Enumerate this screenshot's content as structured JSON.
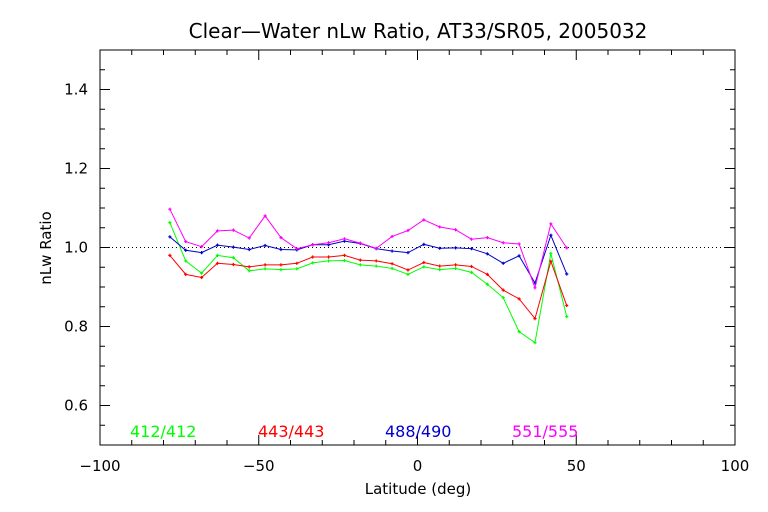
{
  "chart_data": {
    "type": "line",
    "title": "Clear—Water nLw Ratio, AT33/SR05, 2005032",
    "xlabel": "Latitude (deg)",
    "ylabel": "nLw Ratio",
    "xlim": [
      -100,
      100
    ],
    "ylim": [
      0.5,
      1.5
    ],
    "x_ticks": [
      -100,
      -50,
      0,
      50,
      100
    ],
    "x_tick_labels": [
      "−100",
      "−50",
      "0",
      "50",
      "100"
    ],
    "y_ticks": [
      0.6,
      0.8,
      1.0,
      1.2,
      1.4
    ],
    "y_tick_labels": [
      "0.6",
      "0.8",
      "1.0",
      "1.2",
      "1.4"
    ],
    "reference_line": 1.0,
    "grid": false,
    "legend_placement": "bottom-inside",
    "x": [
      -78,
      -73,
      -68,
      -63,
      -58,
      -53,
      -48,
      -43,
      -38,
      -33,
      -28,
      -23,
      -18,
      -13,
      -8,
      -3,
      2,
      7,
      12,
      17,
      22,
      27,
      32,
      37,
      42,
      47
    ],
    "series": [
      {
        "name": "412/412",
        "color": "#00ff00",
        "values": [
          1.063,
          0.966,
          0.935,
          0.98,
          0.974,
          0.941,
          0.946,
          0.944,
          0.946,
          0.961,
          0.966,
          0.967,
          0.956,
          0.953,
          0.947,
          0.932,
          0.951,
          0.944,
          0.947,
          0.937,
          0.907,
          0.873,
          0.787,
          0.759,
          0.985,
          0.825
        ]
      },
      {
        "name": "443/443",
        "color": "#ff0000",
        "values": [
          0.98,
          0.932,
          0.924,
          0.96,
          0.957,
          0.951,
          0.956,
          0.956,
          0.96,
          0.976,
          0.976,
          0.98,
          0.968,
          0.966,
          0.959,
          0.943,
          0.962,
          0.953,
          0.956,
          0.952,
          0.932,
          0.892,
          0.87,
          0.82,
          0.965,
          0.853
        ]
      },
      {
        "name": "488/490",
        "color": "#0000cc",
        "values": [
          1.027,
          0.993,
          0.987,
          1.006,
          1.001,
          0.995,
          1.005,
          0.995,
          0.994,
          1.007,
          1.007,
          1.016,
          1.01,
          0.997,
          0.991,
          0.987,
          1.008,
          0.998,
          0.999,
          0.997,
          0.984,
          0.96,
          0.979,
          0.91,
          1.031,
          0.933
        ]
      },
      {
        "name": "551/555",
        "color": "#ff00ff",
        "values": [
          1.097,
          1.015,
          1.002,
          1.042,
          1.044,
          1.024,
          1.08,
          1.025,
          0.997,
          1.007,
          1.012,
          1.022,
          1.011,
          0.998,
          1.028,
          1.043,
          1.07,
          1.052,
          1.045,
          1.021,
          1.025,
          1.012,
          1.009,
          0.898,
          1.06,
          0.999
        ]
      }
    ]
  }
}
